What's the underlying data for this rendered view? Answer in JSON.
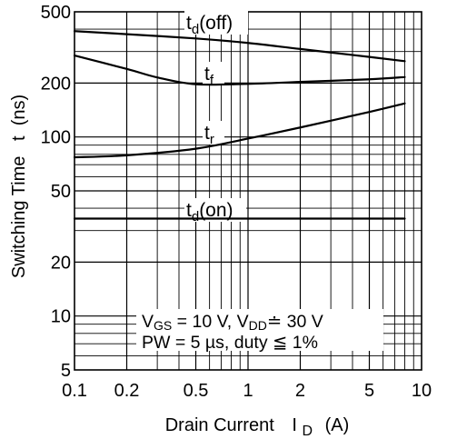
{
  "chart_data": {
    "type": "line",
    "xscale": "log",
    "yscale": "log",
    "xlim": [
      0.1,
      10
    ],
    "ylim": [
      5,
      500
    ],
    "xlabel": "Drain Current",
    "xlabel_symbol": "I",
    "xlabel_subscript": "D",
    "xlabel_unit": "(A)",
    "ylabel": "Switching Time   t  (ns)",
    "grid": true,
    "xticks": [
      {
        "value": 0.1,
        "label": "0.1"
      },
      {
        "value": 0.2,
        "label": "0.2"
      },
      {
        "value": 0.5,
        "label": "0.5"
      },
      {
        "value": 1,
        "label": "1"
      },
      {
        "value": 2,
        "label": "2"
      },
      {
        "value": 5,
        "label": "5"
      },
      {
        "value": 10,
        "label": "10"
      }
    ],
    "yticks": [
      {
        "value": 5,
        "label": "5"
      },
      {
        "value": 10,
        "label": "10"
      },
      {
        "value": 20,
        "label": "20"
      },
      {
        "value": 50,
        "label": "50"
      },
      {
        "value": 100,
        "label": "100"
      },
      {
        "value": 200,
        "label": "200"
      },
      {
        "value": 500,
        "label": "500"
      }
    ],
    "series": [
      {
        "name": "td(off)",
        "label_main": "t",
        "label_sub": "d",
        "label_suffix": "(off)",
        "points": [
          [
            0.1,
            390
          ],
          [
            0.2,
            375
          ],
          [
            0.5,
            355
          ],
          [
            1,
            335
          ],
          [
            2,
            310
          ],
          [
            5,
            280
          ],
          [
            8,
            265
          ]
        ]
      },
      {
        "name": "tf",
        "label_main": "t",
        "label_sub": "f",
        "label_suffix": "",
        "points": [
          [
            0.1,
            285
          ],
          [
            0.2,
            240
          ],
          [
            0.3,
            215
          ],
          [
            0.5,
            197
          ],
          [
            1,
            198
          ],
          [
            2,
            203
          ],
          [
            5,
            210
          ],
          [
            8,
            216
          ]
        ]
      },
      {
        "name": "tr",
        "label_main": "t",
        "label_sub": "r",
        "label_suffix": "",
        "points": [
          [
            0.1,
            77
          ],
          [
            0.2,
            79
          ],
          [
            0.5,
            86
          ],
          [
            1,
            98
          ],
          [
            2,
            113
          ],
          [
            5,
            138
          ],
          [
            8,
            154
          ]
        ]
      },
      {
        "name": "td(on)",
        "label_main": "t",
        "label_sub": "d",
        "label_suffix": "(on)",
        "points": [
          [
            0.1,
            35
          ],
          [
            1,
            35
          ],
          [
            8,
            35
          ]
        ]
      }
    ],
    "annotations": {
      "line1": {
        "v1": "V",
        "v1_sub": "GS",
        "v1_val": " = 10 V, ",
        "v2": "V",
        "v2_sub": "DD",
        "v2_val": "≐ 30 V"
      },
      "line2": "PW = 5 µs, duty ≦ 1%"
    }
  }
}
